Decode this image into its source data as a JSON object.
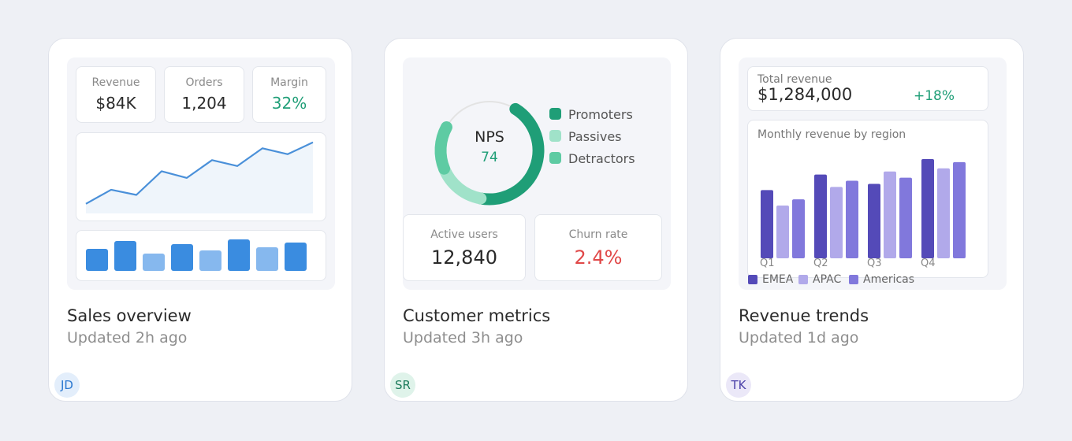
{
  "cards": [
    {
      "title": "Sales overview",
      "updated": "Updated 2h ago",
      "avatar": {
        "initials": "JD",
        "bg": "#e3eefb",
        "fg": "#2b78d0"
      },
      "kpis": [
        {
          "label": "Revenue",
          "value": "$84K",
          "color": "#2a2a2a"
        },
        {
          "label": "Orders",
          "value": "1,204",
          "color": "#2a2a2a"
        },
        {
          "label": "Margin",
          "value": "32%",
          "color": "#1f9e77"
        }
      ]
    },
    {
      "title": "Customer metrics",
      "updated": "Updated 3h ago",
      "avatar": {
        "initials": "SR",
        "bg": "#dff3ea",
        "fg": "#1a7a5a"
      },
      "donut": {
        "label": "NPS",
        "value": "74"
      },
      "legend": [
        {
          "label": "Promoters",
          "color": "#1f9e77"
        },
        {
          "label": "Passives",
          "color": "#a0e2c9"
        },
        {
          "label": "Detractors",
          "color": "#5ecba3"
        }
      ],
      "kpis": [
        {
          "label": "Active users",
          "value": "12,840",
          "color": "#2a2a2a"
        },
        {
          "label": "Churn rate",
          "value": "2.4%",
          "color": "#e04848"
        }
      ]
    },
    {
      "title": "Revenue trends",
      "updated": "Updated 1d ago",
      "avatar": {
        "initials": "TK",
        "bg": "#ebe8f8",
        "fg": "#4a3fa8"
      },
      "total_label": "Total revenue",
      "total_value": "$1,284,000",
      "delta": "+18%",
      "chart_label": "Monthly revenue by region"
    }
  ],
  "chart_data": [
    {
      "type": "line",
      "values": [
        13,
        32,
        25,
        57,
        48,
        72,
        64,
        88,
        80,
        96
      ],
      "ylim": [
        0,
        100
      ],
      "color": "#4a90d9"
    },
    {
      "type": "bar",
      "values": [
        28,
        38,
        22,
        34,
        26,
        40,
        30,
        36
      ],
      "ylim": [
        0,
        40
      ],
      "colors": [
        "#3a8ce0",
        "#3a8ce0",
        "#86b8ee",
        "#3a8ce0",
        "#86b8ee",
        "#3a8ce0",
        "#86b8ee",
        "#3a8ce0"
      ]
    },
    {
      "type": "pie",
      "labels": [
        "Promoters",
        "Passives",
        "Detractors"
      ],
      "values": [
        44,
        16,
        14
      ],
      "colors": [
        "#1f9e77",
        "#a0e2c9",
        "#5ecba3"
      ],
      "remainder": 26,
      "remainder_color": "#e3e3e3"
    },
    {
      "type": "bar",
      "categories": [
        "Q1",
        "Q2",
        "Q3",
        "Q4"
      ],
      "series": [
        {
          "name": "EMEA",
          "values": [
            88,
            108,
            96,
            128
          ],
          "color": "#544ab8"
        },
        {
          "name": "APAC",
          "values": [
            68,
            92,
            112,
            116
          ],
          "color": "#b1a9ea"
        },
        {
          "name": "Americas",
          "values": [
            76,
            100,
            104,
            124
          ],
          "color": "#8178dc"
        }
      ],
      "ylim": [
        0,
        130
      ]
    }
  ]
}
